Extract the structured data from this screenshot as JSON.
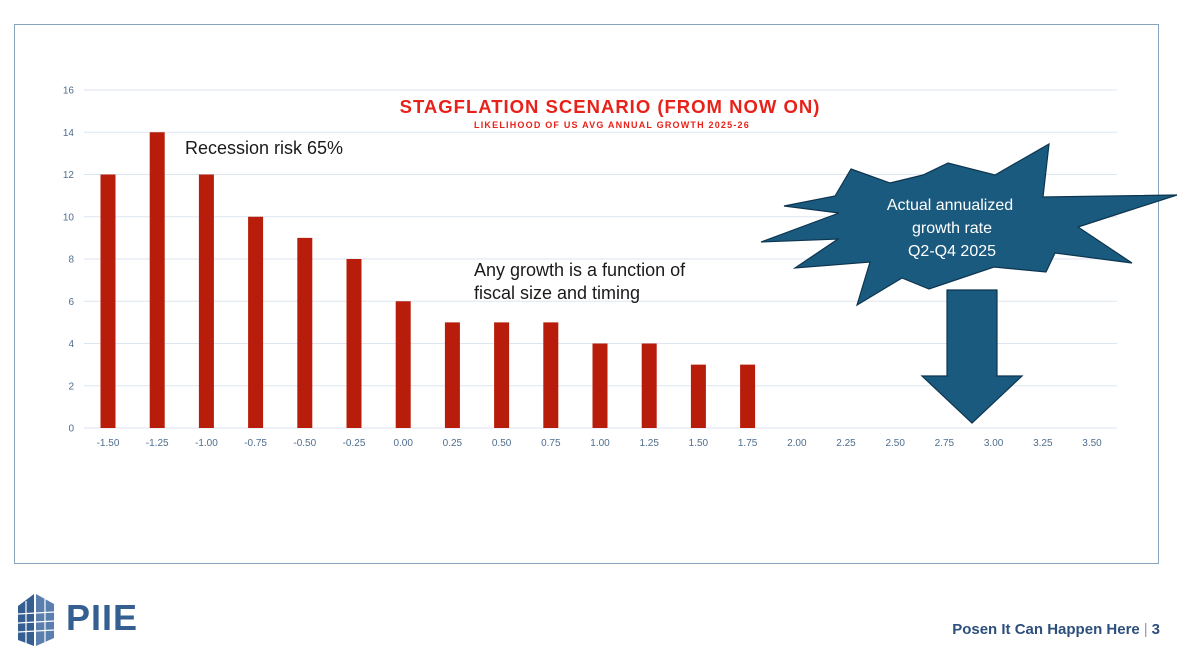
{
  "chart_data": {
    "type": "bar",
    "title": "STAGFLATION SCENARIO (FROM NOW ON)",
    "subtitle": "LIKELIHOOD OF US AVG ANNUAL GROWTH 2025-26",
    "categories": [
      "-1.50",
      "-1.25",
      "-1.00",
      "-0.75",
      "-0.50",
      "-0.25",
      "0.00",
      "0.25",
      "0.50",
      "0.75",
      "1.00",
      "1.25",
      "1.50",
      "1.75",
      "2.00",
      "2.25",
      "2.50",
      "2.75",
      "3.00",
      "3.25",
      "3.50"
    ],
    "values": [
      12,
      14,
      12,
      10,
      9,
      8,
      6,
      5,
      5,
      5,
      4,
      4,
      3,
      3,
      0,
      0,
      0,
      0,
      0,
      0,
      0
    ],
    "yticks": [
      "0",
      "2",
      "4",
      "6",
      "8",
      "10",
      "12",
      "14",
      "16"
    ],
    "ylim": [
      0,
      16
    ],
    "xlabel": "",
    "ylabel": "",
    "grid": true,
    "bar_color": "#b81c0a"
  },
  "annotations": {
    "recession": "Recession risk 65%",
    "growth_line1": "Any growth is a function of",
    "growth_line2": "fiscal size and timing",
    "burst_line1": "Actual annualized",
    "burst_line2": "growth rate",
    "burst_line3": "Q2-Q4 2025"
  },
  "colors": {
    "burst_fill": "#1a5a7e",
    "arrow_fill": "#1a5a7e",
    "brand": "#365f91"
  },
  "logo": {
    "name": "PIIE",
    "icon": "piie-building-icon"
  },
  "footer": {
    "title": "Posen It Can Happen Here",
    "separator": "|",
    "page": "3"
  }
}
